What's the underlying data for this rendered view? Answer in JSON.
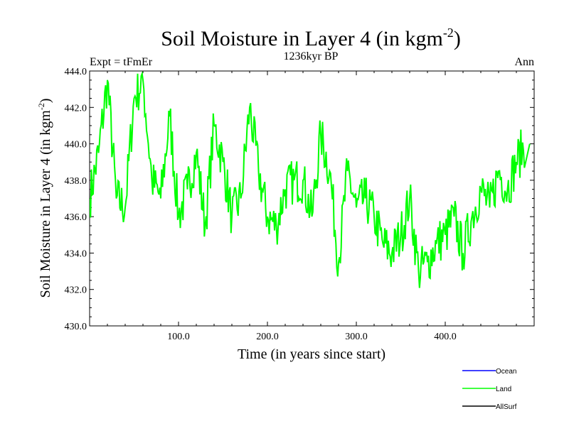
{
  "chart_data": {
    "type": "line",
    "title": "Soil Moisture in Layer 4 (in kgm",
    "title_sup": "-2",
    "title_close": ")",
    "subtitle_left": "Expt = tFmEr",
    "subtitle_center": "1236kyr BP",
    "subtitle_right": "Ann",
    "xlabel": "Time (in years since start)",
    "ylabel": "Soil Moisture in Layer 4 (in kgm",
    "ylabel_sup": "-2",
    "ylabel_close": ")",
    "xlim": [
      0,
      500
    ],
    "ylim": [
      430,
      444
    ],
    "xticks": [
      100,
      200,
      300,
      400
    ],
    "xtick_labels": [
      "100.0",
      "200.0",
      "300.0",
      "400.0"
    ],
    "yticks": [
      430,
      432,
      434,
      436,
      438,
      440,
      442,
      444
    ],
    "ytick_labels": [
      "430.0",
      "432.0",
      "434.0",
      "436.0",
      "438.0",
      "440.0",
      "442.0",
      "444.0"
    ],
    "legend": [
      {
        "name": "Ocean",
        "color": "#0000ff"
      },
      {
        "name": "Land",
        "color": "#00ff00"
      },
      {
        "name": "AllSurf",
        "color": "#000000"
      }
    ],
    "series": [
      {
        "name": "Land",
        "color": "#00ff00",
        "x_step": 10,
        "x_start": 0,
        "values": [
          437.0,
          439.5,
          443.5,
          437.0,
          436.5,
          442.5,
          443.5,
          438.0,
          437.0,
          441.5,
          436.0,
          437.5,
          439.5,
          435.5,
          441.0,
          439.0,
          436.0,
          437.0,
          442.0,
          438.5,
          436.0,
          435.5,
          437.5,
          438.0,
          438.0,
          436.0,
          440.5,
          438.5,
          433.5,
          438.5,
          436.5,
          437.0,
          436.0,
          434.5,
          434.0,
          435.0,
          437.0,
          433.0,
          433.5,
          434.5,
          435.0,
          436.0,
          434.0,
          436.0,
          437.5,
          436.5,
          438.5,
          437.5,
          439.0,
          440.0
        ]
      }
    ]
  }
}
